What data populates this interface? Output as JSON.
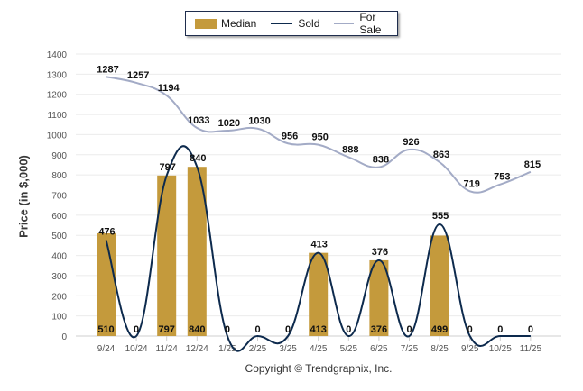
{
  "chart_data": {
    "type": "bar",
    "title": "",
    "xlabel": "",
    "ylabel": "Price (in $,000)",
    "ylim": [
      0,
      1400
    ],
    "yticks": [
      0,
      100,
      200,
      300,
      400,
      500,
      600,
      700,
      800,
      900,
      1000,
      1100,
      1200,
      1300,
      1400
    ],
    "grid": true,
    "legend_position": "top-center",
    "categories": [
      "9/24",
      "10/24",
      "11/24",
      "12/24",
      "1/25",
      "2/25",
      "3/25",
      "4/25",
      "5/25",
      "6/25",
      "7/25",
      "8/25",
      "9/25",
      "10/25",
      "11/25"
    ],
    "series": [
      {
        "name": "Median",
        "type": "bar",
        "color": "#c49a3c",
        "values": [
          510,
          0,
          797,
          840,
          0,
          0,
          0,
          413,
          0,
          376,
          0,
          499,
          0,
          0,
          0
        ]
      },
      {
        "name": "Sold",
        "type": "line",
        "color": "#0d2a4d",
        "values": [
          476,
          0,
          797,
          840,
          0,
          0,
          0,
          413,
          0,
          376,
          0,
          555,
          0,
          0,
          0
        ]
      },
      {
        "name": "For Sale",
        "type": "line",
        "color": "#a3abc6",
        "values": [
          1287,
          1257,
          1194,
          1033,
          1020,
          1030,
          956,
          950,
          888,
          838,
          926,
          863,
          719,
          753,
          815
        ]
      }
    ]
  },
  "legend": {
    "median": "Median",
    "sold": "Sold",
    "for_sale": "For Sale"
  },
  "copyright": "Copyright © Trendgraphix, Inc."
}
